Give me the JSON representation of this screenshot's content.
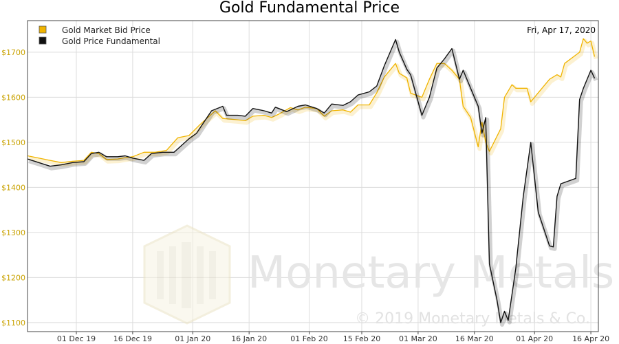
{
  "chart_data": {
    "type": "line",
    "title": "Gold Fundamental Price",
    "date_label": "Fri, Apr 17, 2020",
    "ylim": [
      1080,
      1770
    ],
    "y_ticks": [
      1100,
      1200,
      1300,
      1400,
      1500,
      1600,
      1700
    ],
    "y_tick_labels": [
      "$1100",
      "$1200",
      "$1300",
      "$1400",
      "$1500",
      "$1600",
      "$1700"
    ],
    "xlim": [
      "2019-11-18",
      "2020-04-18"
    ],
    "x_ticks": [
      "2019-12-01",
      "2019-12-16",
      "2020-01-01",
      "2020-01-16",
      "2020-02-01",
      "2020-02-15",
      "2020-03-01",
      "2020-03-16",
      "2020-04-01",
      "2020-04-16"
    ],
    "x_tick_labels": [
      "01 Dec 19",
      "16 Dec 19",
      "01 Jan 20",
      "16 Jan 20",
      "01 Feb 20",
      "15 Feb 20",
      "01 Mar 20",
      "16 Mar 20",
      "01 Apr 20",
      "16 Apr 20"
    ],
    "grid": true,
    "legend_position": "top-left",
    "series": [
      {
        "name": "Gold Market Bid Price",
        "color": "#f0b400",
        "points": [
          [
            "2019-11-18",
            1470
          ],
          [
            "2019-11-21",
            1465
          ],
          [
            "2019-11-24",
            1460
          ],
          [
            "2019-11-27",
            1455
          ],
          [
            "2019-11-30",
            1458
          ],
          [
            "2019-12-03",
            1460
          ],
          [
            "2019-12-05",
            1478
          ],
          [
            "2019-12-07",
            1475
          ],
          [
            "2019-12-09",
            1462
          ],
          [
            "2019-12-12",
            1463
          ],
          [
            "2019-12-14",
            1466
          ],
          [
            "2019-12-16",
            1468
          ],
          [
            "2019-12-19",
            1478
          ],
          [
            "2019-12-22",
            1478
          ],
          [
            "2019-12-25",
            1482
          ],
          [
            "2019-12-28",
            1510
          ],
          [
            "2019-12-31",
            1515
          ],
          [
            "2020-01-03",
            1540
          ],
          [
            "2020-01-05",
            1555
          ],
          [
            "2020-01-07",
            1570
          ],
          [
            "2020-01-09",
            1553
          ],
          [
            "2020-01-13",
            1550
          ],
          [
            "2020-01-15",
            1548
          ],
          [
            "2020-01-17",
            1558
          ],
          [
            "2020-01-20",
            1560
          ],
          [
            "2020-01-22",
            1555
          ],
          [
            "2020-01-24",
            1563
          ],
          [
            "2020-01-27",
            1577
          ],
          [
            "2020-01-29",
            1572
          ],
          [
            "2020-01-31",
            1578
          ],
          [
            "2020-02-03",
            1575
          ],
          [
            "2020-02-05",
            1558
          ],
          [
            "2020-02-07",
            1570
          ],
          [
            "2020-02-10",
            1572
          ],
          [
            "2020-02-12",
            1567
          ],
          [
            "2020-02-14",
            1583
          ],
          [
            "2020-02-17",
            1583
          ],
          [
            "2020-02-19",
            1610
          ],
          [
            "2020-02-21",
            1645
          ],
          [
            "2020-02-24",
            1675
          ],
          [
            "2020-02-25",
            1653
          ],
          [
            "2020-02-27",
            1643
          ],
          [
            "2020-02-28",
            1609
          ],
          [
            "2020-03-02",
            1600
          ],
          [
            "2020-03-04",
            1640
          ],
          [
            "2020-03-06",
            1675
          ],
          [
            "2020-03-08",
            1675
          ],
          [
            "2020-03-10",
            1660
          ],
          [
            "2020-03-12",
            1640
          ],
          [
            "2020-03-13",
            1580
          ],
          [
            "2020-03-15",
            1555
          ],
          [
            "2020-03-17",
            1490
          ],
          [
            "2020-03-18",
            1545
          ],
          [
            "2020-03-19",
            1500
          ],
          [
            "2020-03-20",
            1480
          ],
          [
            "2020-03-23",
            1530
          ],
          [
            "2020-03-24",
            1600
          ],
          [
            "2020-03-26",
            1628
          ],
          [
            "2020-03-27",
            1620
          ],
          [
            "2020-03-30",
            1620
          ],
          [
            "2020-03-31",
            1590
          ],
          [
            "2020-04-02",
            1610
          ],
          [
            "2020-04-05",
            1640
          ],
          [
            "2020-04-07",
            1650
          ],
          [
            "2020-04-08",
            1645
          ],
          [
            "2020-04-09",
            1675
          ],
          [
            "2020-04-13",
            1700
          ],
          [
            "2020-04-14",
            1730
          ],
          [
            "2020-04-15",
            1720
          ],
          [
            "2020-04-16",
            1725
          ],
          [
            "2020-04-17",
            1690
          ]
        ]
      },
      {
        "name": "Gold Price Fundamental",
        "color": "#111111",
        "points": [
          [
            "2019-11-18",
            1463
          ],
          [
            "2019-11-21",
            1455
          ],
          [
            "2019-11-24",
            1447
          ],
          [
            "2019-11-27",
            1450
          ],
          [
            "2019-11-30",
            1455
          ],
          [
            "2019-12-03",
            1457
          ],
          [
            "2019-12-05",
            1475
          ],
          [
            "2019-12-07",
            1478
          ],
          [
            "2019-12-09",
            1468
          ],
          [
            "2019-12-12",
            1468
          ],
          [
            "2019-12-14",
            1470
          ],
          [
            "2019-12-16",
            1465
          ],
          [
            "2019-12-19",
            1460
          ],
          [
            "2019-12-21",
            1475
          ],
          [
            "2019-12-24",
            1478
          ],
          [
            "2019-12-27",
            1478
          ],
          [
            "2019-12-31",
            1508
          ],
          [
            "2020-01-02",
            1520
          ],
          [
            "2020-01-04",
            1545
          ],
          [
            "2020-01-06",
            1570
          ],
          [
            "2020-01-09",
            1580
          ],
          [
            "2020-01-10",
            1560
          ],
          [
            "2020-01-13",
            1560
          ],
          [
            "2020-01-15",
            1558
          ],
          [
            "2020-01-17",
            1575
          ],
          [
            "2020-01-20",
            1570
          ],
          [
            "2020-01-22",
            1565
          ],
          [
            "2020-01-23",
            1578
          ],
          [
            "2020-01-26",
            1568
          ],
          [
            "2020-01-29",
            1580
          ],
          [
            "2020-01-31",
            1583
          ],
          [
            "2020-02-03",
            1575
          ],
          [
            "2020-02-05",
            1565
          ],
          [
            "2020-02-07",
            1585
          ],
          [
            "2020-02-10",
            1582
          ],
          [
            "2020-02-12",
            1590
          ],
          [
            "2020-02-14",
            1605
          ],
          [
            "2020-02-17",
            1612
          ],
          [
            "2020-02-19",
            1625
          ],
          [
            "2020-02-21",
            1670
          ],
          [
            "2020-02-24",
            1728
          ],
          [
            "2020-02-25",
            1700
          ],
          [
            "2020-02-27",
            1662
          ],
          [
            "2020-02-28",
            1650
          ],
          [
            "2020-03-02",
            1560
          ],
          [
            "2020-03-04",
            1600
          ],
          [
            "2020-03-06",
            1665
          ],
          [
            "2020-03-08",
            1685
          ],
          [
            "2020-03-10",
            1708
          ],
          [
            "2020-03-12",
            1640
          ],
          [
            "2020-03-13",
            1660
          ],
          [
            "2020-03-15",
            1620
          ],
          [
            "2020-03-17",
            1580
          ],
          [
            "2020-03-18",
            1520
          ],
          [
            "2020-03-19",
            1555
          ],
          [
            "2020-03-20",
            1230
          ],
          [
            "2020-03-22",
            1150
          ],
          [
            "2020-03-23",
            1100
          ],
          [
            "2020-03-24",
            1125
          ],
          [
            "2020-03-25",
            1105
          ],
          [
            "2020-03-27",
            1220
          ],
          [
            "2020-03-29",
            1380
          ],
          [
            "2020-03-31",
            1500
          ],
          [
            "2020-04-02",
            1345
          ],
          [
            "2020-04-05",
            1270
          ],
          [
            "2020-04-06",
            1268
          ],
          [
            "2020-04-07",
            1380
          ],
          [
            "2020-04-08",
            1408
          ],
          [
            "2020-04-12",
            1420
          ],
          [
            "2020-04-13",
            1595
          ],
          [
            "2020-04-14",
            1620
          ],
          [
            "2020-04-16",
            1660
          ],
          [
            "2020-04-17",
            1642
          ]
        ]
      }
    ],
    "watermark": {
      "brand_name": "Monetary Metals",
      "copyright": "© 2019 Monetary Metals & Co."
    }
  }
}
